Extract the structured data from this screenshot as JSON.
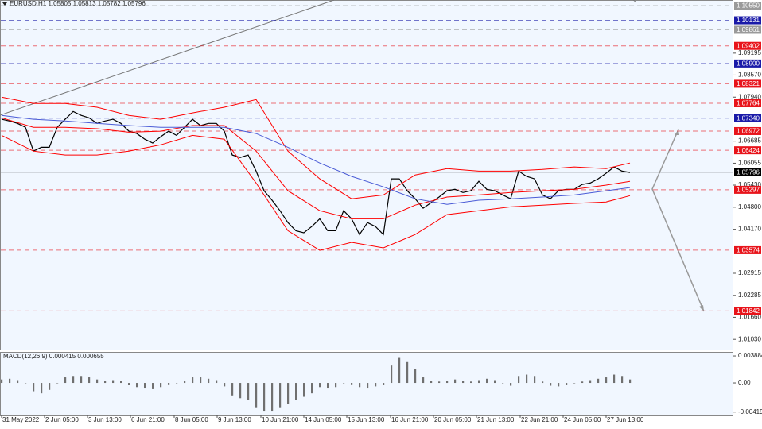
{
  "chart_data": [
    {
      "type": "line",
      "title": "EURUSD,H1  1.05805 1.05813 1.05782 1.05796",
      "xlim": [
        0,
        92
      ],
      "ylim": [
        1.0074,
        1.1071
      ],
      "xticks": [
        {
          "value": 0,
          "label": "31 May 2022"
        },
        {
          "value": 5.4,
          "label": "2 Jun 05:00"
        },
        {
          "value": 10.8,
          "label": "3 Jun 13:00"
        },
        {
          "value": 16.2,
          "label": "6 Jun 21:00"
        },
        {
          "value": 21.7,
          "label": "8 Jun 05:00"
        },
        {
          "value": 27.1,
          "label": "9 Jun 13:00"
        },
        {
          "value": 32.6,
          "label": "10 Jun 21:00"
        },
        {
          "value": 38,
          "label": "14 Jun 05:00"
        },
        {
          "value": 43.4,
          "label": "15 Jun 13:00"
        },
        {
          "value": 48.9,
          "label": "16 Jun 21:00"
        },
        {
          "value": 54.3,
          "label": "20 Jun 05:00"
        },
        {
          "value": 59.7,
          "label": "21 Jun 13:00"
        },
        {
          "value": 65.2,
          "label": "22 Jun 21:00"
        },
        {
          "value": 70.6,
          "label": "24 Jun 05:00"
        },
        {
          "value": 76,
          "label": "27 Jun 13:00"
        }
      ],
      "yticks": [
        1.09195,
        {
          "value": 1.0857,
          "label": "1.08570"
        },
        {
          "value": 1.0794,
          "label": "1.07940"
        },
        1.06685,
        1.06055,
        {
          "value": 1.0543,
          "label": "1.05430"
        },
        {
          "value": 1.048,
          "label": "1.04800"
        },
        {
          "value": 1.0417,
          "label": "1.04170"
        },
        1.02915,
        1.02285,
        {
          "value": 1.0166,
          "label": "1.01660"
        },
        {
          "value": 1.0103,
          "label": "1.01030"
        }
      ],
      "levels": [
        {
          "value": 1.1055,
          "label": "1.10550",
          "color": "#9a9a9a",
          "line": "dashed"
        },
        {
          "value": 1.10131,
          "label": "1.10131",
          "color": "#1a1aa8",
          "line": "dashed"
        },
        {
          "value": 1.09861,
          "label": "1.09861",
          "color": "#9a9a9a",
          "line": "dashed"
        },
        {
          "value": 1.09402,
          "label": "1.09402",
          "color": "#e8141b",
          "line": "dashed"
        },
        {
          "value": 1.089,
          "label": "1.08900",
          "color": "#1a1aa8",
          "line": "dashed"
        },
        {
          "value": 1.08321,
          "label": "1.08321",
          "color": "#e8141b",
          "line": "dashed"
        },
        {
          "value": 1.07764,
          "label": "1.07764",
          "color": "#e8141b",
          "line": "dashed"
        },
        {
          "value": 1.0734,
          "label": "1.07340",
          "color": "#1a1aa8",
          "line": "dashed"
        },
        {
          "value": 1.06972,
          "label": "1.06972",
          "color": "#e8141b",
          "line": "dashed"
        },
        {
          "value": 1.06424,
          "label": "1.06424",
          "color": "#e8141b",
          "line": "dashed"
        },
        {
          "value": 1.05796,
          "label": "1.05796",
          "color": "#000000",
          "line": "solid"
        },
        {
          "value": 1.05297,
          "label": "1.05297",
          "color": "#e8141b",
          "line": "dashed"
        },
        {
          "value": 1.03574,
          "label": "1.03574",
          "color": "#e8141b",
          "line": "dashed"
        },
        {
          "value": 1.01842,
          "label": "1.01842",
          "color": "#e8141b",
          "line": "dashed"
        }
      ],
      "series": [
        {
          "color": "#000000",
          "values": [
            1.0731,
            1.0726,
            1.0719,
            1.0708,
            1.064,
            1.0651,
            1.0651,
            1.0708,
            1.0731,
            1.0753,
            1.0742,
            1.0735,
            1.0719,
            1.0726,
            1.0731,
            1.0719,
            1.0697,
            1.069,
            1.0674,
            1.0663,
            1.0681,
            1.0697,
            1.0685,
            1.0708,
            1.0731,
            1.0713,
            1.0719,
            1.0719,
            1.0697,
            1.0629,
            1.0622,
            1.0629,
            1.0583,
            1.0527,
            1.05,
            1.047,
            1.0436,
            1.0413,
            1.0407,
            1.0425,
            1.0447,
            1.0413,
            1.0413,
            1.047,
            1.0447,
            1.0402,
            1.0436,
            1.0425,
            1.0402,
            1.0561,
            1.0561,
            1.0527,
            1.0504,
            1.0477,
            1.0493,
            1.0509,
            1.0527,
            1.0531,
            1.0522,
            1.0527,
            1.0554,
            1.0531,
            1.0527,
            1.0515,
            1.0504,
            1.0583,
            1.0568,
            1.0561,
            1.0515,
            1.0504,
            1.0527,
            1.0531,
            1.0531,
            1.0545,
            1.0549,
            1.0561,
            1.0577,
            1.0595,
            1.0583,
            1.0579
          ]
        },
        {
          "color": "#ff0000",
          "x": [
            0,
            4,
            8,
            12,
            16,
            20,
            24,
            28,
            32,
            36,
            40,
            44,
            48,
            52,
            56,
            60,
            64,
            68,
            72,
            76,
            79
          ],
          "values": [
            1.0794,
            1.0776,
            1.0776,
            1.0765,
            1.0742,
            1.0731,
            1.0749,
            1.0765,
            1.0787,
            1.064,
            1.0561,
            1.0504,
            1.0515,
            1.0572,
            1.059,
            1.0583,
            1.0583,
            1.0588,
            1.0595,
            1.059,
            1.0606
          ]
        },
        {
          "color": "#ff0000",
          "x": [
            0,
            4,
            8,
            12,
            16,
            20,
            24,
            28,
            32,
            36,
            40,
            44,
            48,
            52,
            56,
            60,
            64,
            68,
            72,
            76,
            79
          ],
          "values": [
            1.0735,
            1.0708,
            1.0708,
            1.0704,
            1.0694,
            1.0697,
            1.0713,
            1.0713,
            1.064,
            1.0527,
            1.047,
            1.0447,
            1.0447,
            1.0486,
            1.0509,
            1.0515,
            1.0522,
            1.0527,
            1.0531,
            1.0543,
            1.0554
          ]
        },
        {
          "color": "#ff0000",
          "x": [
            0,
            4,
            8,
            12,
            16,
            20,
            24,
            28,
            32,
            36,
            40,
            44,
            48,
            52,
            56,
            60,
            64,
            68,
            72,
            76,
            79
          ],
          "values": [
            1.0685,
            1.064,
            1.0629,
            1.0629,
            1.064,
            1.0658,
            1.0685,
            1.0674,
            1.0549,
            1.0413,
            1.0357,
            1.038,
            1.0364,
            1.0402,
            1.0459,
            1.047,
            1.0481,
            1.0486,
            1.0491,
            1.0495,
            1.0513
          ]
        },
        {
          "color": "#4a5bd6",
          "x": [
            0,
            4,
            8,
            12,
            16,
            20,
            24,
            28,
            32,
            36,
            40,
            44,
            48,
            52,
            56,
            60,
            64,
            68,
            72,
            76,
            79
          ],
          "values": [
            1.0742,
            1.0731,
            1.0726,
            1.0719,
            1.0713,
            1.0708,
            1.0708,
            1.0708,
            1.069,
            1.0651,
            1.0606,
            1.0568,
            1.0538,
            1.0504,
            1.0488,
            1.05,
            1.0504,
            1.0509,
            1.0515,
            1.0527,
            1.0536
          ]
        }
      ]
    },
    {
      "type": "bar",
      "title": "MACD(12,26,9) 0.000415 0.000655",
      "color": "#707070",
      "ylim": [
        -0.00468,
        0.00446
      ],
      "yticks": [
        0.003884,
        {
          "value": 0,
          "label": "0.00"
        },
        -0.004191
      ],
      "values": [
        0.0005,
        0.0006,
        0.0004,
        0,
        -0.0012,
        -0.0015,
        -0.001,
        0,
        0.0008,
        0.001,
        0.001,
        0.0008,
        0.0005,
        0.0003,
        0.0004,
        0.0003,
        -0.0003,
        -0.0006,
        -0.0008,
        -0.0009,
        -0.0006,
        -0.0002,
        0,
        0.0003,
        0.0008,
        0.0008,
        0.0006,
        0.0004,
        -0.0005,
        -0.0018,
        -0.0022,
        -0.0025,
        -0.0035,
        -0.004,
        -0.004,
        -0.0035,
        -0.003,
        -0.0025,
        -0.002,
        -0.0015,
        -0.0006,
        -0.0008,
        -0.0006,
        0,
        -0.0002,
        -0.0006,
        -0.0008,
        -0.0005,
        -0.0003,
        0.0025,
        0.0036,
        0.003,
        0.002,
        0.0008,
        0.0003,
        0.0002,
        0.0003,
        0.0005,
        0.0003,
        0.0002,
        0.0004,
        0.0006,
        0.0004,
        0,
        -0.0004,
        0.001,
        0.0012,
        0.001,
        0.0002,
        -0.0004,
        -0.0005,
        -0.0003,
        0,
        0.0002,
        0.0004,
        0.0006,
        0.0008,
        0.0012,
        0.001,
        0.0005
      ]
    }
  ]
}
